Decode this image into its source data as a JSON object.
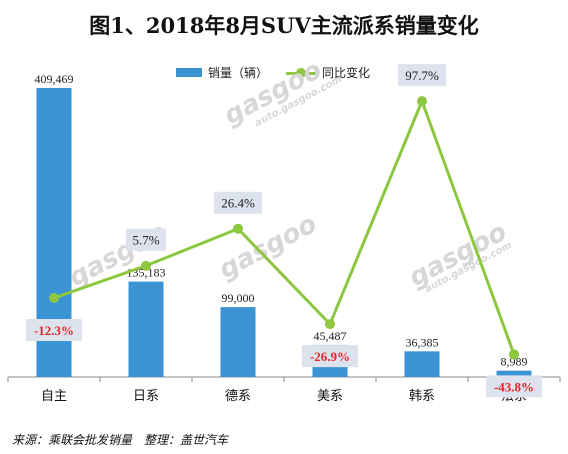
{
  "title": "图1、2018年8月SUV主流派系销量变化",
  "source": "来源：乘联会批发销量　整理：盖世汽车",
  "watermark": {
    "brand": "gasgoo",
    "cn": "盖世汽车",
    "url": "auto.gasgoo.com"
  },
  "colors": {
    "bar": "#3b93d4",
    "line": "#8dc63f",
    "negative": "#e8232a",
    "label_bg": "#dde3ec"
  },
  "chart_data": {
    "type": "bar",
    "categories": [
      "自主",
      "日系",
      "德系",
      "美系",
      "韩系",
      "法系"
    ],
    "series": [
      {
        "name": "销量（辆）",
        "type": "bar",
        "values": [
          409469,
          135183,
          99000,
          45487,
          36385,
          8989
        ],
        "labels": [
          "409,469",
          "135,183",
          "99,000",
          "45,487",
          "36,385",
          "8,989"
        ]
      },
      {
        "name": "同比变化",
        "type": "line",
        "values": [
          -12.3,
          5.7,
          26.4,
          -26.9,
          97.7,
          -43.8
        ],
        "labels": [
          "-12.3%",
          "5.7%",
          "26.4%",
          "-26.9%",
          "97.7%",
          "-43.8%"
        ]
      }
    ],
    "ylim": [
      0,
      409469
    ],
    "y2lim": [
      -52,
      100
    ],
    "legend": "top-center",
    "grid": false
  }
}
